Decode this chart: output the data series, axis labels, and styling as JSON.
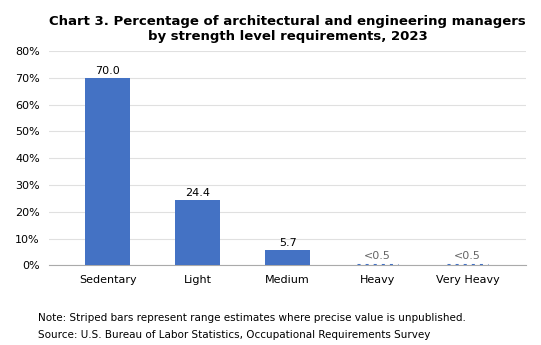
{
  "categories": [
    "Sedentary",
    "Light",
    "Medium",
    "Heavy",
    "Very Heavy"
  ],
  "values": [
    70.0,
    24.4,
    5.7,
    0.3,
    0.3
  ],
  "labels": [
    "70.0",
    "24.4",
    "5.7",
    "<0.5",
    "<0.5"
  ],
  "bar_color": "#4472C4",
  "striped_indices": [
    3,
    4
  ],
  "title_line1": "Chart 3. Percentage of architectural and engineering managers",
  "title_line2": "by strength level requirements, 2023",
  "ylim": [
    0,
    80
  ],
  "yticks": [
    0,
    10,
    20,
    30,
    40,
    50,
    60,
    70,
    80
  ],
  "ytick_labels": [
    "0%",
    "10%",
    "20%",
    "30%",
    "40%",
    "50%",
    "60%",
    "70%",
    "80%"
  ],
  "note1": "Note: Striped bars represent range estimates where precise value is unpublished.",
  "note2": "Source: U.S. Bureau of Labor Statistics, Occupational Requirements Survey",
  "bg_color": "#ffffff",
  "plot_bg_color": "#ffffff",
  "grid_color": "#e0e0e0",
  "label_color_normal": "#000000",
  "label_color_striped": "#666666",
  "dotted_color": "#4472C4"
}
